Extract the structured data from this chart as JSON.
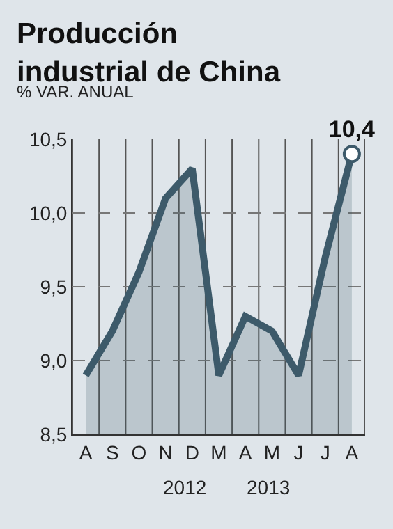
{
  "chart_data": {
    "type": "area",
    "title": "Producción\nindustrial de China",
    "ylabel": "% VAR. ANUAL",
    "categories": [
      "A",
      "S",
      "O",
      "N",
      "D",
      "M",
      "A",
      "M",
      "J",
      "J",
      "A"
    ],
    "series": [
      {
        "color": "#3d5a6a",
        "values": [
          8.9,
          9.2,
          9.6,
          10.1,
          10.3,
          8.9,
          9.3,
          9.2,
          8.9,
          9.7,
          10.4
        ],
        "value_labels": [
          null,
          null,
          null,
          null,
          null,
          null,
          null,
          null,
          null,
          null,
          "10,4"
        ]
      }
    ],
    "ylim": [
      8.5,
      10.5
    ],
    "yticks": [
      {
        "value": 8.5,
        "label": "8,5"
      },
      {
        "value": 9.0,
        "label": "9,0"
      },
      {
        "value": 9.5,
        "label": "9,5"
      },
      {
        "value": 10.0,
        "label": "10,0"
      },
      {
        "value": 10.5,
        "label": "10,5"
      }
    ],
    "grid": true,
    "annotations": [
      "2012",
      "2013"
    ]
  }
}
